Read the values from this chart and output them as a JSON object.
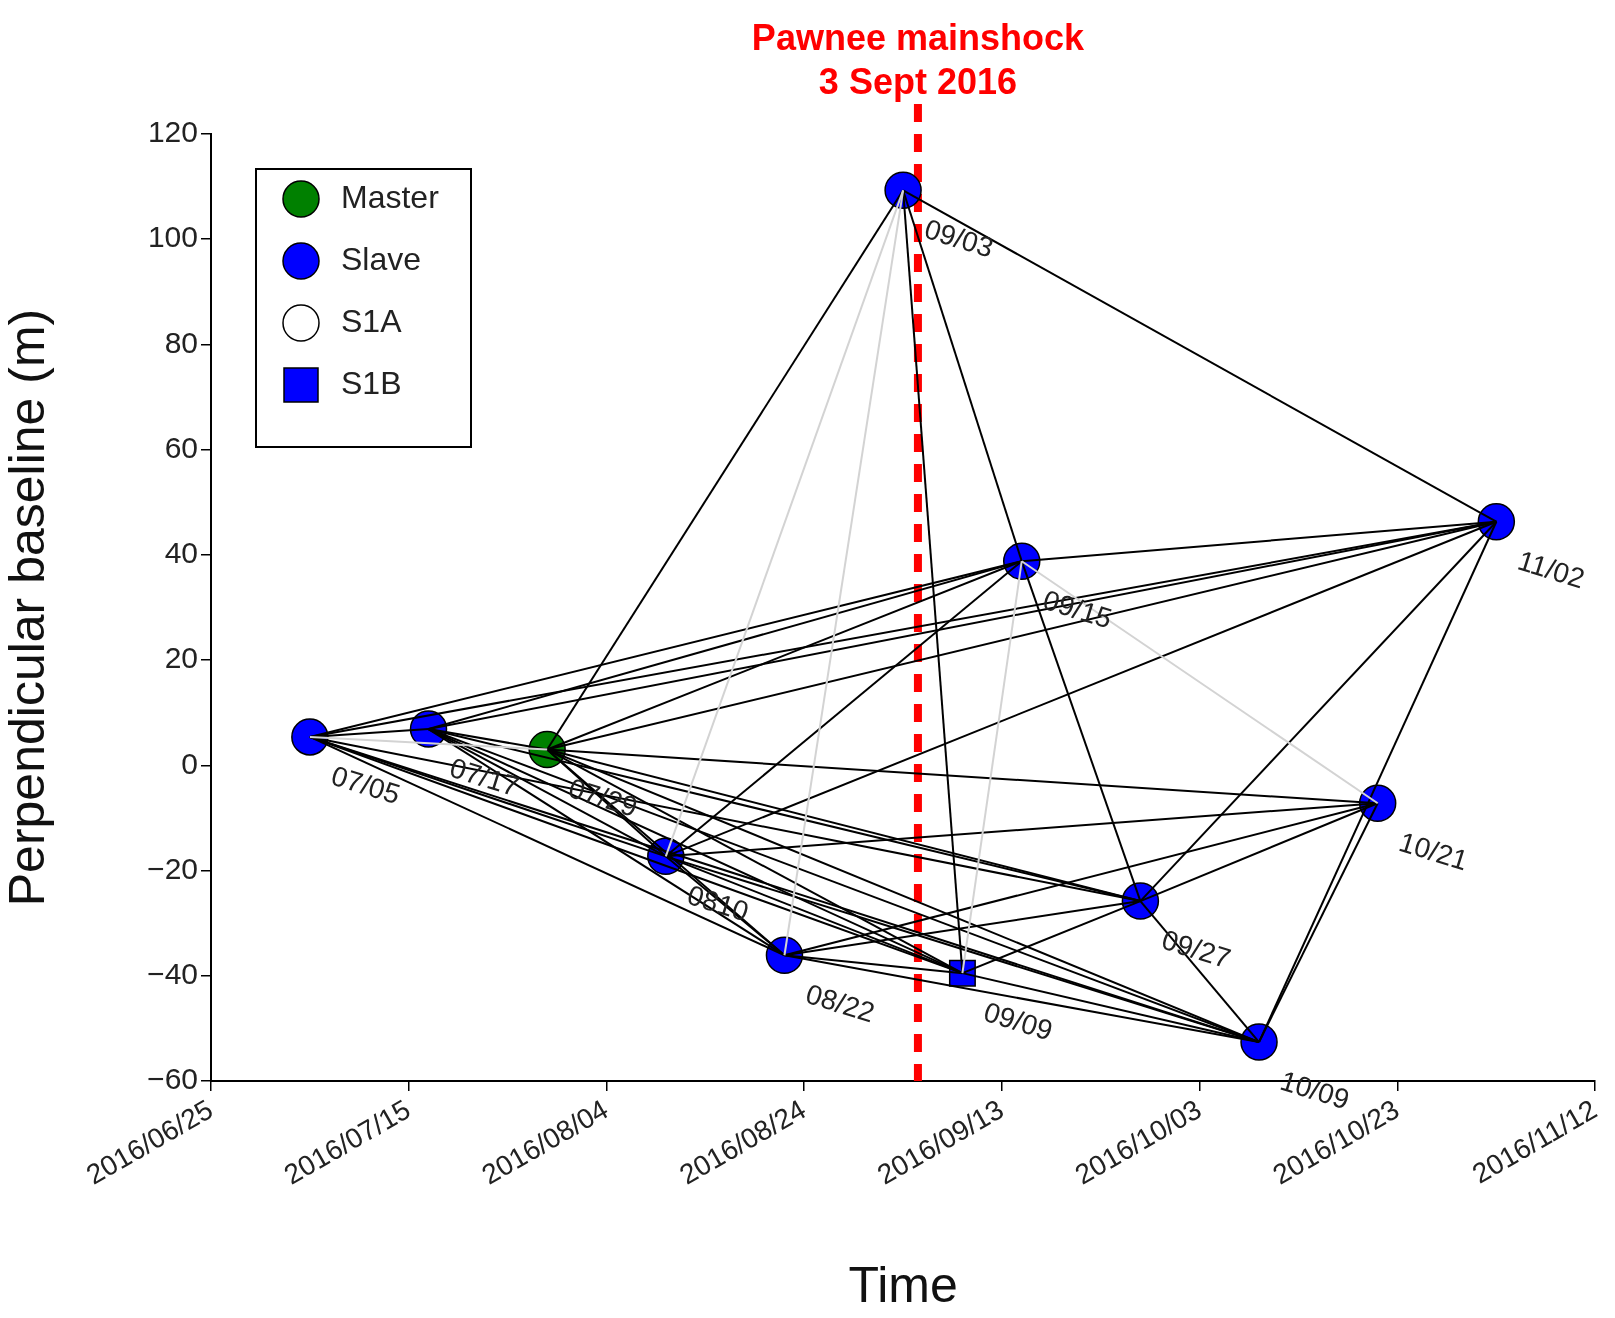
{
  "chart_data": {
    "type": "scatter",
    "xlabel": "Time",
    "ylabel": "Perpendicular baseline (m)",
    "xlim": [
      "2016-06-25",
      "2016-11-12"
    ],
    "xticks": [
      {
        "value": "2016-06-25",
        "label": "2016/06/25"
      },
      {
        "value": "2016-07-15",
        "label": "2016/07/15"
      },
      {
        "value": "2016-08-04",
        "label": "2016/08/04"
      },
      {
        "value": "2016-08-24",
        "label": "2016/08/24"
      },
      {
        "value": "2016-09-13",
        "label": "2016/09/13"
      },
      {
        "value": "2016-10-03",
        "label": "2016/10/03"
      },
      {
        "value": "2016-10-23",
        "label": "2016/10/23"
      },
      {
        "value": "2016-11-12",
        "label": "2016/11/12"
      }
    ],
    "ylim": [
      -60,
      120
    ],
    "yticks": [
      {
        "value": -60,
        "label": "−60"
      },
      {
        "value": -40,
        "label": "−40"
      },
      {
        "value": -20,
        "label": "−20"
      },
      0,
      20,
      40,
      60,
      80,
      100,
      120
    ],
    "legend": "top left",
    "ref_lines": [
      {
        "axis": "x",
        "value": "2016-09-04T12:00",
        "label": "Pawnee mainshock\n3 Sept 2016",
        "color": "#ff0000",
        "line_style": "dashed"
      }
    ],
    "series": [
      {
        "type": "line",
        "color": "#d3d3d3",
        "marker": "none",
        "x": [
          "2016-08-10",
          "2016-09-03"
        ],
        "values": [
          -17.3,
          109.3
        ]
      },
      {
        "type": "line",
        "color": "#d3d3d3",
        "marker": "none",
        "x": [
          "2016-08-22",
          "2016-09-03"
        ],
        "values": [
          -36.1,
          109.3
        ]
      },
      {
        "type": "line",
        "color": "#d3d3d3",
        "marker": "none",
        "x": [
          "2016-09-09",
          "2016-09-15"
        ],
        "values": [
          -39.5,
          38.8
        ]
      },
      {
        "type": "line",
        "color": "#d3d3d3",
        "marker": "none",
        "x": [
          "2016-09-15",
          "2016-10-21"
        ],
        "values": [
          38.8,
          -7.2
        ]
      },
      {
        "type": "line",
        "color": "#d3d3d3",
        "marker": "none",
        "x": [
          "2016-07-05",
          "2016-07-29"
        ],
        "values": [
          5.4,
          3.0
        ]
      },
      {
        "type": "line",
        "color": "#000000",
        "marker": "none",
        "x": [
          "2016-07-05",
          "2016-07-17"
        ],
        "values": [
          5.4,
          6.9
        ]
      },
      {
        "type": "line",
        "color": "#000000",
        "marker": "none",
        "x": [
          "2016-07-05",
          "2016-08-10"
        ],
        "values": [
          5.4,
          -17.3
        ]
      },
      {
        "type": "line",
        "color": "#000000",
        "marker": "none",
        "x": [
          "2016-07-05",
          "2016-08-22"
        ],
        "values": [
          5.4,
          -36.1
        ]
      },
      {
        "type": "line",
        "color": "#000000",
        "marker": "none",
        "x": [
          "2016-07-05",
          "2016-09-09"
        ],
        "values": [
          5.4,
          -39.5
        ]
      },
      {
        "type": "line",
        "color": "#000000",
        "marker": "none",
        "x": [
          "2016-07-05",
          "2016-10-09"
        ],
        "values": [
          5.4,
          -52.6
        ]
      },
      {
        "type": "line",
        "color": "#000000",
        "marker": "none",
        "x": [
          "2016-07-05",
          "2016-09-15"
        ],
        "values": [
          5.4,
          38.8
        ]
      },
      {
        "type": "line",
        "color": "#000000",
        "marker": "none",
        "x": [
          "2016-07-05",
          "2016-11-02"
        ],
        "values": [
          5.4,
          46.3
        ]
      },
      {
        "type": "line",
        "color": "#000000",
        "marker": "none",
        "x": [
          "2016-07-05",
          "2016-09-27"
        ],
        "values": [
          5.4,
          -25.8
        ]
      },
      {
        "type": "line",
        "color": "#000000",
        "marker": "none",
        "x": [
          "2016-07-17",
          "2016-07-29"
        ],
        "values": [
          6.9,
          3.0
        ]
      },
      {
        "type": "line",
        "color": "#000000",
        "marker": "none",
        "x": [
          "2016-07-17",
          "2016-08-10"
        ],
        "values": [
          6.9,
          -17.3
        ]
      },
      {
        "type": "line",
        "color": "#000000",
        "marker": "none",
        "x": [
          "2016-07-17",
          "2016-08-22"
        ],
        "values": [
          6.9,
          -36.1
        ]
      },
      {
        "type": "line",
        "color": "#000000",
        "marker": "none",
        "x": [
          "2016-07-17",
          "2016-09-09"
        ],
        "values": [
          6.9,
          -39.5
        ]
      },
      {
        "type": "line",
        "color": "#000000",
        "marker": "none",
        "x": [
          "2016-07-17",
          "2016-09-15"
        ],
        "values": [
          6.9,
          38.8
        ]
      },
      {
        "type": "line",
        "color": "#000000",
        "marker": "none",
        "x": [
          "2016-07-17",
          "2016-11-02"
        ],
        "values": [
          6.9,
          46.3
        ]
      },
      {
        "type": "line",
        "color": "#000000",
        "marker": "none",
        "x": [
          "2016-07-17",
          "2016-09-27"
        ],
        "values": [
          6.9,
          -25.8
        ]
      },
      {
        "type": "line",
        "color": "#000000",
        "marker": "none",
        "x": [
          "2016-07-17",
          "2016-10-09"
        ],
        "values": [
          6.9,
          -52.6
        ]
      },
      {
        "type": "line",
        "color": "#000000",
        "marker": "none",
        "x": [
          "2016-07-29",
          "2016-09-03"
        ],
        "values": [
          3.0,
          109.3
        ]
      },
      {
        "type": "line",
        "color": "#000000",
        "marker": "none",
        "x": [
          "2016-07-29",
          "2016-08-10"
        ],
        "values": [
          3.0,
          -17.3
        ]
      },
      {
        "type": "line",
        "color": "#000000",
        "marker": "none",
        "x": [
          "2016-07-29",
          "2016-08-22"
        ],
        "values": [
          3.0,
          -36.1
        ]
      },
      {
        "type": "line",
        "color": "#000000",
        "marker": "none",
        "x": [
          "2016-07-29",
          "2016-09-09"
        ],
        "values": [
          3.0,
          -39.5
        ]
      },
      {
        "type": "line",
        "color": "#000000",
        "marker": "none",
        "x": [
          "2016-07-29",
          "2016-09-27"
        ],
        "values": [
          3.0,
          -25.8
        ]
      },
      {
        "type": "line",
        "color": "#000000",
        "marker": "none",
        "x": [
          "2016-07-29",
          "2016-10-09"
        ],
        "values": [
          3.0,
          -52.6
        ]
      },
      {
        "type": "line",
        "color": "#000000",
        "marker": "none",
        "x": [
          "2016-07-29",
          "2016-10-21"
        ],
        "values": [
          3.0,
          -7.2
        ]
      },
      {
        "type": "line",
        "color": "#000000",
        "marker": "none",
        "x": [
          "2016-07-29",
          "2016-11-02"
        ],
        "values": [
          3.0,
          46.3
        ]
      },
      {
        "type": "line",
        "color": "#000000",
        "marker": "none",
        "x": [
          "2016-07-29",
          "2016-09-15"
        ],
        "values": [
          3.0,
          38.8
        ]
      },
      {
        "type": "line",
        "color": "#000000",
        "marker": "none",
        "x": [
          "2016-08-10",
          "2016-08-22"
        ],
        "values": [
          -17.3,
          -36.1
        ]
      },
      {
        "type": "line",
        "color": "#000000",
        "marker": "none",
        "x": [
          "2016-08-10",
          "2016-09-15"
        ],
        "values": [
          -17.3,
          38.8
        ]
      },
      {
        "type": "line",
        "color": "#000000",
        "marker": "none",
        "x": [
          "2016-08-10",
          "2016-11-02"
        ],
        "values": [
          -17.3,
          46.3
        ]
      },
      {
        "type": "line",
        "color": "#000000",
        "marker": "none",
        "x": [
          "2016-08-10",
          "2016-10-21"
        ],
        "values": [
          -17.3,
          -7.2
        ]
      },
      {
        "type": "line",
        "color": "#000000",
        "marker": "none",
        "x": [
          "2016-08-10",
          "2016-09-09"
        ],
        "values": [
          -17.3,
          -39.5
        ]
      },
      {
        "type": "line",
        "color": "#000000",
        "marker": "none",
        "x": [
          "2016-08-10",
          "2016-10-09"
        ],
        "values": [
          -17.3,
          -52.6
        ]
      },
      {
        "type": "line",
        "color": "#000000",
        "marker": "none",
        "x": [
          "2016-08-22",
          "2016-09-09"
        ],
        "values": [
          -36.1,
          -39.5
        ]
      },
      {
        "type": "line",
        "color": "#000000",
        "marker": "none",
        "x": [
          "2016-08-22",
          "2016-09-27"
        ],
        "values": [
          -36.1,
          -25.8
        ]
      },
      {
        "type": "line",
        "color": "#000000",
        "marker": "none",
        "x": [
          "2016-08-22",
          "2016-10-21"
        ],
        "values": [
          -36.1,
          -7.2
        ]
      },
      {
        "type": "line",
        "color": "#000000",
        "marker": "none",
        "x": [
          "2016-08-22",
          "2016-10-09"
        ],
        "values": [
          -36.1,
          -52.6
        ]
      },
      {
        "type": "line",
        "color": "#000000",
        "marker": "none",
        "x": [
          "2016-09-03",
          "2016-09-09"
        ],
        "values": [
          109.3,
          -39.5
        ]
      },
      {
        "type": "line",
        "color": "#000000",
        "marker": "none",
        "x": [
          "2016-09-03",
          "2016-09-15"
        ],
        "values": [
          109.3,
          38.8
        ]
      },
      {
        "type": "line",
        "color": "#000000",
        "marker": "none",
        "x": [
          "2016-09-03",
          "2016-11-02"
        ],
        "values": [
          109.3,
          46.3
        ]
      },
      {
        "type": "line",
        "color": "#000000",
        "marker": "none",
        "x": [
          "2016-09-09",
          "2016-09-27"
        ],
        "values": [
          -39.5,
          -25.8
        ]
      },
      {
        "type": "line",
        "color": "#000000",
        "marker": "none",
        "x": [
          "2016-09-09",
          "2016-10-09"
        ],
        "values": [
          -39.5,
          -52.6
        ]
      },
      {
        "type": "line",
        "color": "#000000",
        "marker": "none",
        "x": [
          "2016-09-15",
          "2016-09-27"
        ],
        "values": [
          38.8,
          -25.8
        ]
      },
      {
        "type": "line",
        "color": "#000000",
        "marker": "none",
        "x": [
          "2016-09-15",
          "2016-11-02"
        ],
        "values": [
          38.8,
          46.3
        ]
      },
      {
        "type": "line",
        "color": "#000000",
        "marker": "none",
        "x": [
          "2016-09-27",
          "2016-10-09"
        ],
        "values": [
          -25.8,
          -52.6
        ]
      },
      {
        "type": "line",
        "color": "#000000",
        "marker": "none",
        "x": [
          "2016-09-27",
          "2016-10-21"
        ],
        "values": [
          -25.8,
          -7.2
        ]
      },
      {
        "type": "line",
        "color": "#000000",
        "marker": "none",
        "x": [
          "2016-09-27",
          "2016-11-02"
        ],
        "values": [
          -25.8,
          46.3
        ]
      },
      {
        "type": "line",
        "color": "#000000",
        "marker": "none",
        "x": [
          "2016-10-09",
          "2016-10-21"
        ],
        "values": [
          -52.6,
          -7.2
        ]
      },
      {
        "type": "line",
        "color": "#000000",
        "marker": "none",
        "x": [
          "2016-10-09",
          "2016-11-02"
        ],
        "values": [
          -52.6,
          46.3
        ]
      },
      {
        "name": "Master",
        "color": "#008000",
        "marker": "circle",
        "x": [
          "2016-07-29"
        ],
        "values": [
          3.0
        ]
      },
      {
        "name": "Slave",
        "color": "#0000ff",
        "marker": "circle",
        "x": [
          "2016-07-05",
          "2016-07-17",
          "2016-08-10",
          "2016-08-22",
          "2016-09-03",
          "2016-09-15",
          "2016-09-27",
          "2016-10-09",
          "2016-10-21",
          "2016-11-02"
        ],
        "values": [
          5.4,
          6.9,
          -17.3,
          -36.1,
          109.3,
          38.8,
          -25.8,
          -52.6,
          -7.2,
          46.3
        ]
      },
      {
        "name": "S1A",
        "color": "#ffffff",
        "marker": "circle"
      },
      {
        "name": "S1B",
        "color": "#0000ff",
        "marker": "square",
        "x": [
          "2016-09-09"
        ],
        "values": [
          -39.5
        ]
      }
    ],
    "annotations": [
      {
        "text": "07/05",
        "x": "2016-07-05",
        "y": 5.4
      },
      {
        "text": "07/17",
        "x": "2016-07-17",
        "y": 6.9
      },
      {
        "text": "07/29",
        "x": "2016-07-29",
        "y": 3.0
      },
      {
        "text": "0810",
        "x": "2016-08-10",
        "y": -17.3
      },
      {
        "text": "08/22",
        "x": "2016-08-22",
        "y": -36.1
      },
      {
        "text": "09/03",
        "x": "2016-09-03",
        "y": 109.3
      },
      {
        "text": "09/09",
        "x": "2016-09-09",
        "y": -39.5
      },
      {
        "text": "09/15",
        "x": "2016-09-15",
        "y": 38.8
      },
      {
        "text": "09/27",
        "x": "2016-09-27",
        "y": -25.8
      },
      {
        "text": "10/09",
        "x": "2016-10-09",
        "y": -52.6
      },
      {
        "text": "10/21",
        "x": "2016-10-21",
        "y": -7.2
      },
      {
        "text": "11/02",
        "x": "2016-11-02",
        "y": 46.3
      }
    ]
  }
}
